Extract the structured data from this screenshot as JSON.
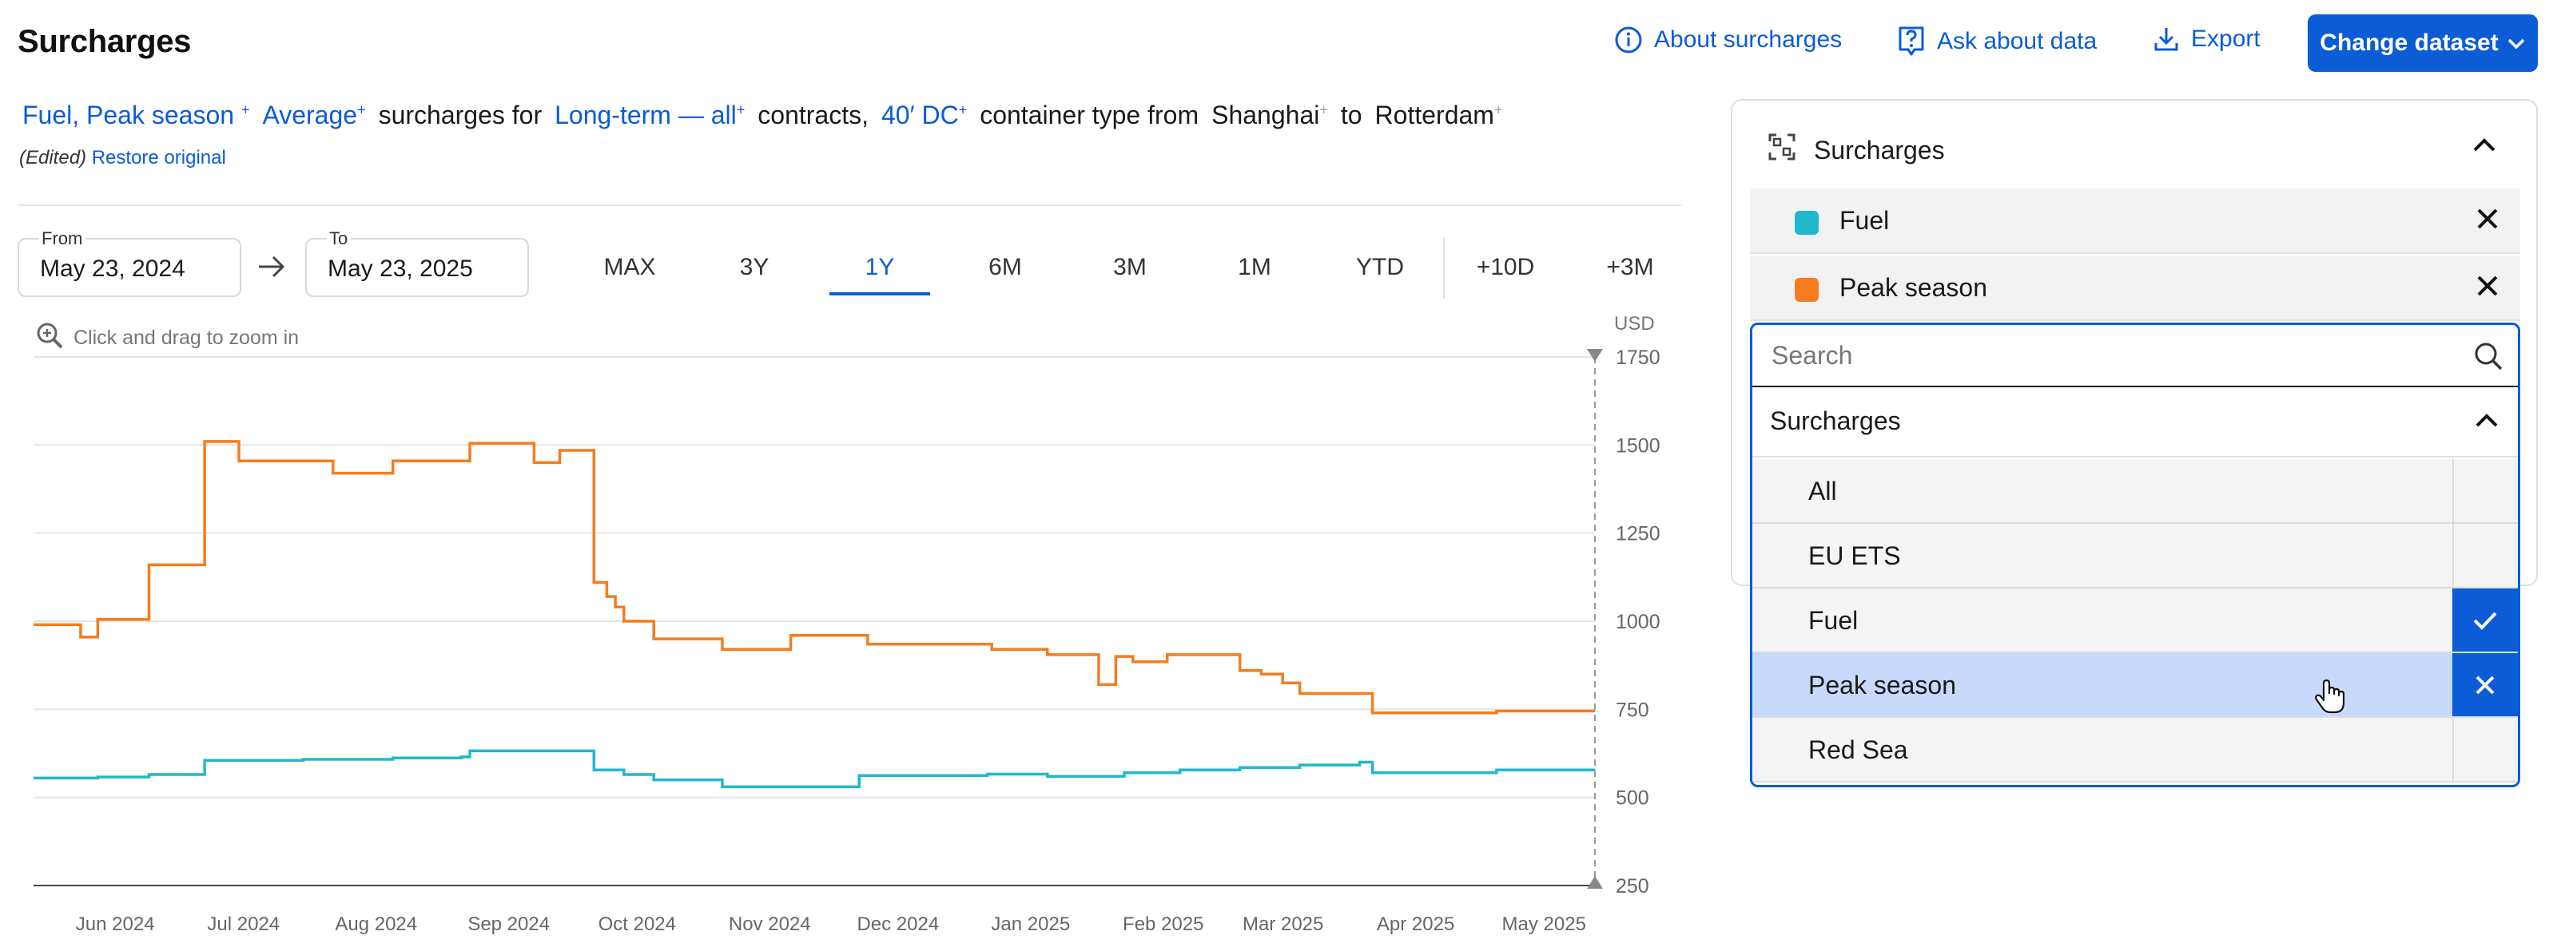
{
  "header": {
    "title": "Surcharges",
    "about_label": "About surcharges",
    "ask_label": "Ask about data",
    "export_label": "Export",
    "change_dataset_label": "Change dataset"
  },
  "description": {
    "surcharge_selection": "Fuel, Peak season",
    "aggregation": "Average",
    "text_1": "surcharges for",
    "contract": "Long-term — all",
    "text_2": "contracts,",
    "container": "40′ DC",
    "text_3": "container type from",
    "origin": "Shanghai",
    "text_4": "to",
    "destination": "Rotterdam",
    "edited_label": "(Edited)",
    "restore_label": "Restore original"
  },
  "date_range": {
    "from_label": "From",
    "from_value": "May 23, 2024",
    "to_label": "To",
    "to_value": "May 23, 2025"
  },
  "range_buttons": [
    "MAX",
    "3Y",
    "1Y",
    "6M",
    "3M",
    "1M",
    "YTD",
    "+10D",
    "+3M"
  ],
  "active_range": "1Y",
  "zoom_hint": "Click and drag to zoom in",
  "colors": {
    "accent": "#0b5cd5",
    "fuel": "#1fb8cd",
    "peak_season": "#f57c1f"
  },
  "chart_data": {
    "type": "line",
    "ylabel": "USD",
    "ylim": [
      250,
      1750
    ],
    "yticks": [
      250,
      500,
      750,
      1000,
      1250,
      1500,
      1750
    ],
    "xlabels": [
      "Jun 2024",
      "Jul 2024",
      "Aug 2024",
      "Sep 2024",
      "Oct 2024",
      "Nov 2024",
      "Dec 2024",
      "Jan 2025",
      "Feb 2025",
      "Mar 2025",
      "Apr 2025",
      "May 2025"
    ],
    "xlim": [
      "2024-05-23",
      "2025-05-23"
    ],
    "step": true,
    "series": [
      {
        "name": "Peak season",
        "color": "#f57c1f",
        "points": [
          [
            "2024-05-23",
            990
          ],
          [
            "2024-06-03",
            955
          ],
          [
            "2024-06-07",
            1005
          ],
          [
            "2024-06-19",
            1160
          ],
          [
            "2024-07-02",
            1510
          ],
          [
            "2024-07-10",
            1455
          ],
          [
            "2024-08-01",
            1420
          ],
          [
            "2024-08-15",
            1455
          ],
          [
            "2024-09-02",
            1505
          ],
          [
            "2024-09-17",
            1450
          ],
          [
            "2024-09-23",
            1485
          ],
          [
            "2024-10-01",
            1110
          ],
          [
            "2024-10-04",
            1070
          ],
          [
            "2024-10-06",
            1040
          ],
          [
            "2024-10-08",
            1000
          ],
          [
            "2024-10-15",
            950
          ],
          [
            "2024-10-31",
            920
          ],
          [
            "2024-11-16",
            960
          ],
          [
            "2024-12-04",
            935
          ],
          [
            "2025-01-02",
            920
          ],
          [
            "2025-01-15",
            905
          ],
          [
            "2025-01-27",
            820
          ],
          [
            "2025-01-31",
            900
          ],
          [
            "2025-02-04",
            885
          ],
          [
            "2025-02-12",
            905
          ],
          [
            "2025-03-01",
            860
          ],
          [
            "2025-03-06",
            850
          ],
          [
            "2025-03-11",
            825
          ],
          [
            "2025-03-15",
            795
          ],
          [
            "2025-04-01",
            740
          ],
          [
            "2025-04-30",
            745
          ],
          [
            "2025-05-23",
            745
          ]
        ]
      },
      {
        "name": "Fuel",
        "color": "#1fb8cd",
        "points": [
          [
            "2024-05-23",
            555
          ],
          [
            "2024-06-07",
            558
          ],
          [
            "2024-06-19",
            565
          ],
          [
            "2024-07-02",
            605
          ],
          [
            "2024-07-25",
            608
          ],
          [
            "2024-08-15",
            612
          ],
          [
            "2024-08-31",
            615
          ],
          [
            "2024-09-02",
            632
          ],
          [
            "2024-10-01",
            578
          ],
          [
            "2024-10-08",
            565
          ],
          [
            "2024-10-15",
            550
          ],
          [
            "2024-10-31",
            530
          ],
          [
            "2024-11-23",
            530
          ],
          [
            "2024-12-02",
            562
          ],
          [
            "2025-01-01",
            566
          ],
          [
            "2025-01-15",
            560
          ],
          [
            "2025-02-02",
            570
          ],
          [
            "2025-02-15",
            578
          ],
          [
            "2025-03-01",
            585
          ],
          [
            "2025-03-15",
            592
          ],
          [
            "2025-03-29",
            600
          ],
          [
            "2025-04-01",
            570
          ],
          [
            "2025-04-30",
            578
          ],
          [
            "2025-05-23",
            578
          ]
        ]
      }
    ]
  },
  "panel": {
    "title": "Surcharges",
    "selected": [
      {
        "label": "Fuel",
        "color": "#1fb8cd"
      },
      {
        "label": "Peak season",
        "color": "#f57c1f"
      }
    ],
    "search_placeholder": "Search",
    "dropdown_title": "Surcharges",
    "options": [
      {
        "label": "All",
        "state": "off"
      },
      {
        "label": "EU ETS",
        "state": "off"
      },
      {
        "label": "Fuel",
        "state": "check"
      },
      {
        "label": "Peak season",
        "state": "remove"
      },
      {
        "label": "Red Sea",
        "state": "off"
      }
    ]
  }
}
